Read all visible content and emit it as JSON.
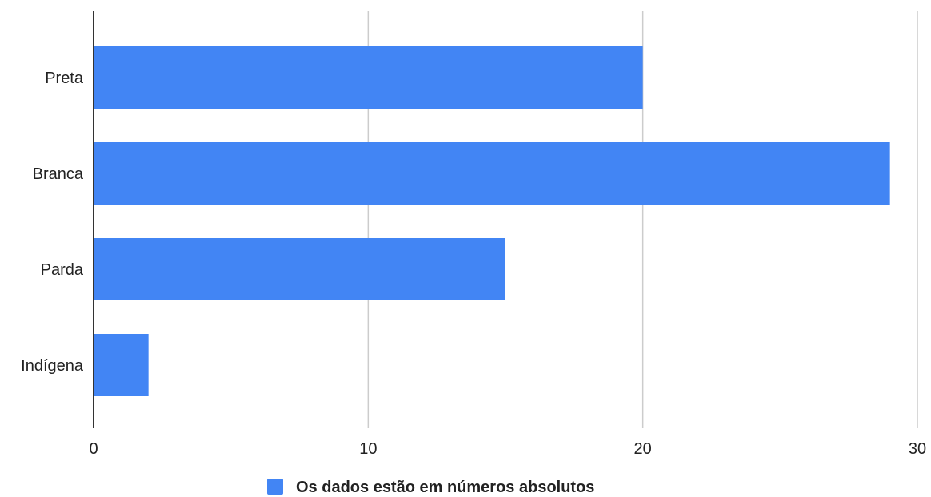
{
  "chart_data": {
    "type": "bar",
    "orientation": "horizontal",
    "categories": [
      "Preta",
      "Branca",
      "Parda",
      "Indígena"
    ],
    "series": [
      {
        "name": "Os dados estão em números absolutos",
        "values": [
          20,
          29,
          15,
          2
        ],
        "color": "#4285f4"
      }
    ],
    "x_ticks": [
      "0",
      "10",
      "20",
      "30"
    ],
    "xlim": [
      0,
      30
    ],
    "grid": true,
    "legend_position": "bottom",
    "title": "",
    "xlabel": "",
    "ylabel": ""
  }
}
